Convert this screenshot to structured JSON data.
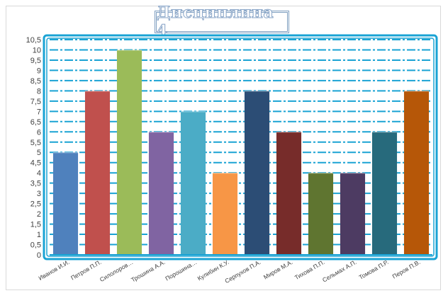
{
  "chart_data": {
    "type": "bar",
    "title": "Дисциплина 4",
    "xlabel": "",
    "ylabel": "",
    "ylim": [
      0,
      10.5
    ],
    "yticks": [
      "0",
      "0,5",
      "1",
      "1,5",
      "2",
      "2,5",
      "3",
      "3,5",
      "4",
      "4,5",
      "5",
      "5,5",
      "6",
      "6,5",
      "7",
      "7,5",
      "8",
      "8,5",
      "9",
      "9,5",
      "10",
      "10,5"
    ],
    "categories": [
      "Иванов И.И.",
      "Петров П.П.",
      "Силолоров…",
      "Трошина А.А.",
      "Порошина…",
      "Кулибин К.У.",
      "Серпухов П.А.",
      "Миров М.А.",
      "Тихова П.П.",
      "Сельмах А.П.",
      "Томова П.Р.",
      "Перов П.В."
    ],
    "values": [
      5,
      8,
      10,
      6,
      7,
      4,
      8,
      6,
      4,
      4,
      6,
      8
    ],
    "colors": [
      "#4f81bd",
      "#c0504d",
      "#9bbb59",
      "#8064a2",
      "#4bacc6",
      "#f79646",
      "#2c4d75",
      "#772c2a",
      "#5f7530",
      "#4d3b62",
      "#276a7c",
      "#b65708"
    ],
    "grid": true,
    "grid_color": "#1aa3d4",
    "frame_color": "#1aa3d4",
    "legend": "none"
  }
}
